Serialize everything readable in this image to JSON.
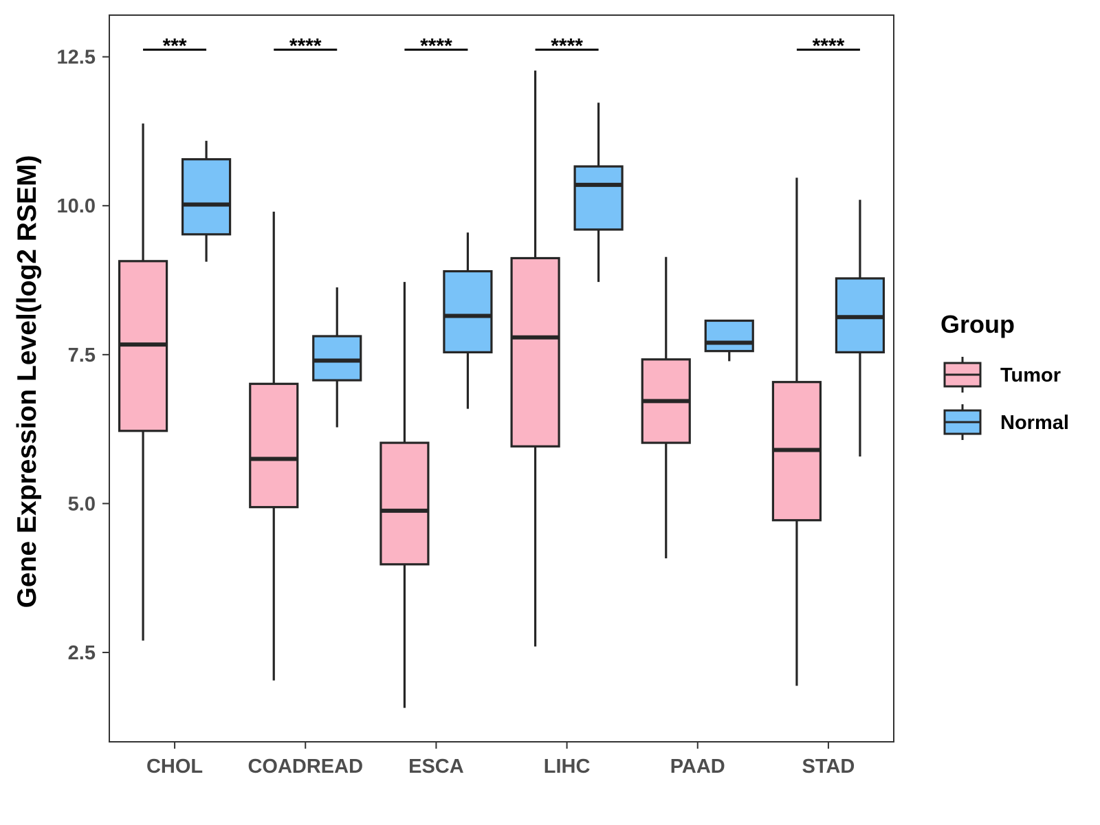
{
  "chart_data": {
    "type": "boxplot",
    "title": "",
    "xlabel": "",
    "ylabel": "Gene Expression Level(log2 RSEM)",
    "ylim": [
      1.0,
      13.2
    ],
    "yticks": [
      2.5,
      5.0,
      7.5,
      10.0,
      12.5
    ],
    "ytick_labels": [
      "2.5",
      "5.0",
      "7.5",
      "10.0",
      "12.5"
    ],
    "categories": [
      "CHOL",
      "COADREAD",
      "ESCA",
      "LIHC",
      "PAAD",
      "STAD"
    ],
    "legend": {
      "title": "Group",
      "position": "right",
      "entries": [
        {
          "name": "Tumor",
          "color": "#fbb4c4"
        },
        {
          "name": "Normal",
          "color": "#79c2f8"
        }
      ]
    },
    "series": [
      {
        "name": "Tumor",
        "color": "#fbb4c4",
        "boxes": [
          {
            "min": 2.7,
            "q1": 6.22,
            "median": 7.67,
            "q3": 9.07,
            "max": 11.38
          },
          {
            "min": 2.03,
            "q1": 4.94,
            "median": 5.75,
            "q3": 7.01,
            "max": 9.9
          },
          {
            "min": 1.57,
            "q1": 3.98,
            "median": 4.88,
            "q3": 6.02,
            "max": 8.72
          },
          {
            "min": 2.6,
            "q1": 5.96,
            "median": 7.79,
            "q3": 9.12,
            "max": 12.27
          },
          {
            "min": 4.08,
            "q1": 6.02,
            "median": 6.72,
            "q3": 7.42,
            "max": 9.14
          },
          {
            "min": 1.94,
            "q1": 4.72,
            "median": 5.9,
            "q3": 7.04,
            "max": 10.47
          }
        ]
      },
      {
        "name": "Normal",
        "color": "#79c2f8",
        "boxes": [
          {
            "min": 9.06,
            "q1": 9.52,
            "median": 10.02,
            "q3": 10.78,
            "max": 11.09
          },
          {
            "min": 6.28,
            "q1": 7.07,
            "median": 7.4,
            "q3": 7.81,
            "max": 8.63
          },
          {
            "min": 6.59,
            "q1": 7.54,
            "median": 8.15,
            "q3": 8.9,
            "max": 9.55
          },
          {
            "min": 8.72,
            "q1": 9.6,
            "median": 10.35,
            "q3": 10.66,
            "max": 11.73
          },
          {
            "min": 7.39,
            "q1": 7.56,
            "median": 7.7,
            "q3": 8.07,
            "max": 8.07
          },
          {
            "min": 5.79,
            "q1": 7.54,
            "median": 8.13,
            "q3": 8.78,
            "max": 10.1
          }
        ]
      }
    ],
    "significance": [
      {
        "category": "CHOL",
        "label": "***"
      },
      {
        "category": "COADREAD",
        "label": "****"
      },
      {
        "category": "ESCA",
        "label": "****"
      },
      {
        "category": "LIHC",
        "label": "****"
      },
      {
        "category": "STAD",
        "label": "****"
      }
    ]
  }
}
